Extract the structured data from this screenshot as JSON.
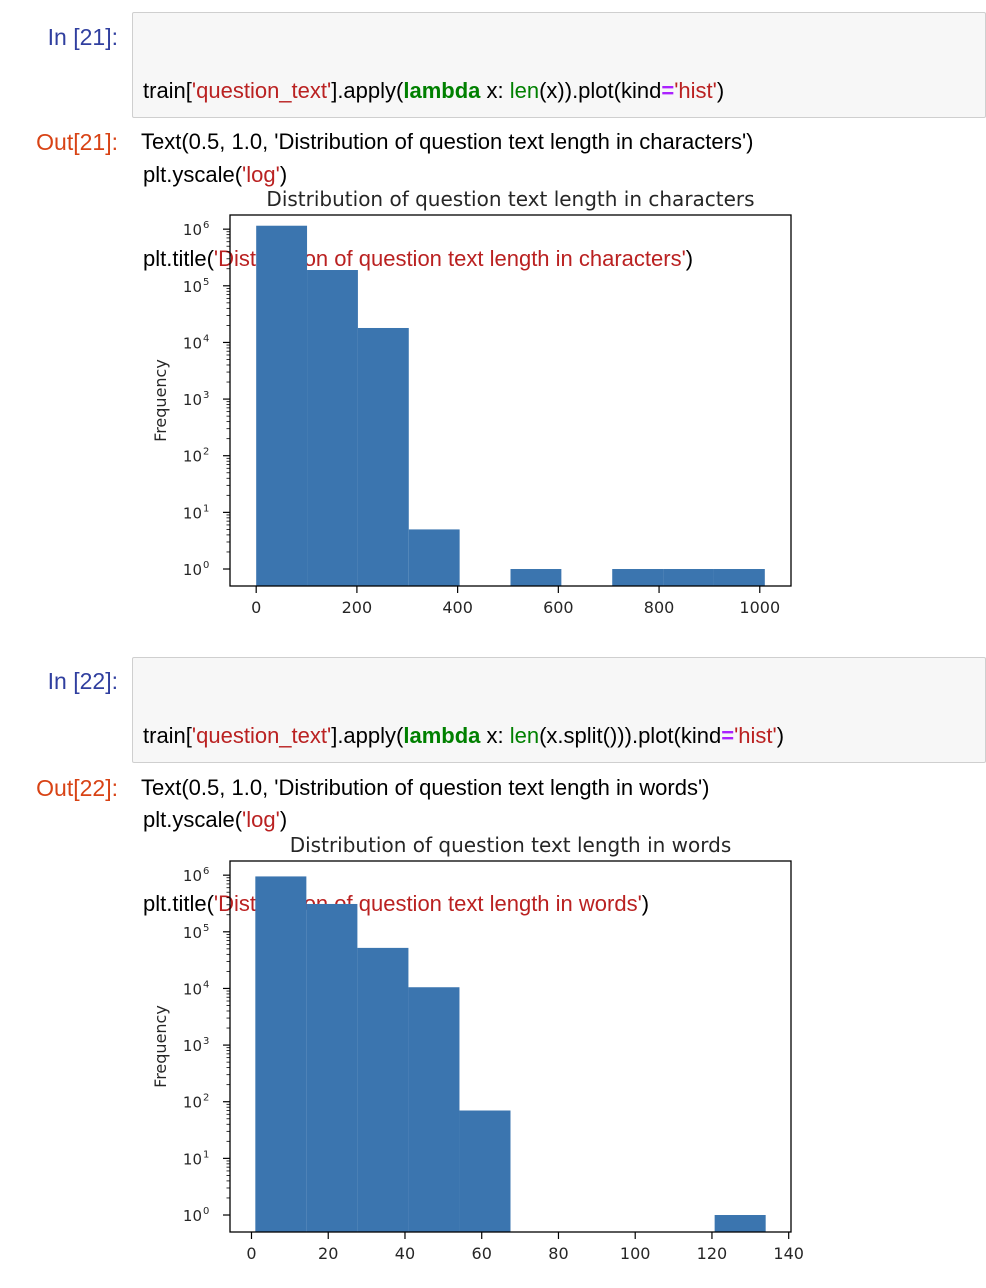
{
  "cells": [
    {
      "in_prompt": "In [21]:",
      "code": {
        "l1": [
          "train[",
          "'question_text'",
          "].apply(",
          "lambda",
          " x: ",
          "len",
          "(x)).plot(kind",
          "=",
          "'hist'",
          ")"
        ],
        "l2": [
          "plt.yscale(",
          "'log'",
          ")"
        ],
        "l3": [
          "plt.title(",
          "'Distribution of question text length in characters'",
          ")"
        ]
      },
      "out_prompt": "Out[21]:",
      "out_text": "Text(0.5, 1.0, 'Distribution of question text length in characters')"
    },
    {
      "in_prompt": "In [22]:",
      "code": {
        "l1": [
          "train[",
          "'question_text'",
          "].apply(",
          "lambda",
          " x: ",
          "len",
          "(x.split())).plot(kind",
          "=",
          "'hist'",
          ")"
        ],
        "l2": [
          "plt.yscale(",
          "'log'",
          ")"
        ],
        "l3": [
          "plt.title(",
          "'Distribution of question text length in words'",
          ")"
        ]
      },
      "out_prompt": "Out[22]:",
      "out_text": "Text(0.5, 1.0, 'Distribution of question text length in words')"
    }
  ],
  "chart_data": [
    {
      "type": "bar",
      "title": "Distribution of question text length in characters",
      "xlabel": "",
      "ylabel": "Frequency",
      "yscale": "log",
      "bar_color": "#3b75af",
      "bin_edges": [
        0,
        101,
        202,
        303,
        404,
        505,
        606,
        707,
        808,
        909,
        1010
      ],
      "values": [
        1150000,
        190000,
        18000,
        5,
        0,
        1,
        0,
        1,
        1,
        1
      ],
      "xlim": [
        -52,
        1062
      ],
      "xticks": [
        0,
        200,
        400,
        600,
        800,
        1000
      ],
      "xtick_labels": [
        "0",
        "200",
        "400",
        "600",
        "800",
        "1000"
      ],
      "ylim_log10": [
        -0.3,
        6.25
      ],
      "ytick_exponents": [
        "0",
        "1",
        "2",
        "3",
        "4",
        "5",
        "6"
      ],
      "ytick_base": "10"
    },
    {
      "type": "bar",
      "title": "Distribution of question text length in words",
      "xlabel": "",
      "ylabel": "Frequency",
      "yscale": "log",
      "bar_color": "#3b75af",
      "bin_edges": [
        1,
        14.3,
        27.6,
        40.9,
        54.2,
        67.5,
        80.8,
        94.1,
        107.4,
        120.7,
        134
      ],
      "values": [
        950000,
        310000,
        52000,
        10500,
        70,
        0,
        0,
        0,
        0,
        1
      ],
      "xlim": [
        -5.6,
        140.6
      ],
      "xticks": [
        0,
        20,
        40,
        60,
        80,
        100,
        120,
        140
      ],
      "xtick_labels": [
        "0",
        "20",
        "40",
        "60",
        "80",
        "100",
        "120",
        "140"
      ],
      "ylim_log10": [
        -0.3,
        6.25
      ],
      "ytick_exponents": [
        "0",
        "1",
        "2",
        "3",
        "4",
        "5",
        "6"
      ],
      "ytick_base": "10"
    }
  ]
}
